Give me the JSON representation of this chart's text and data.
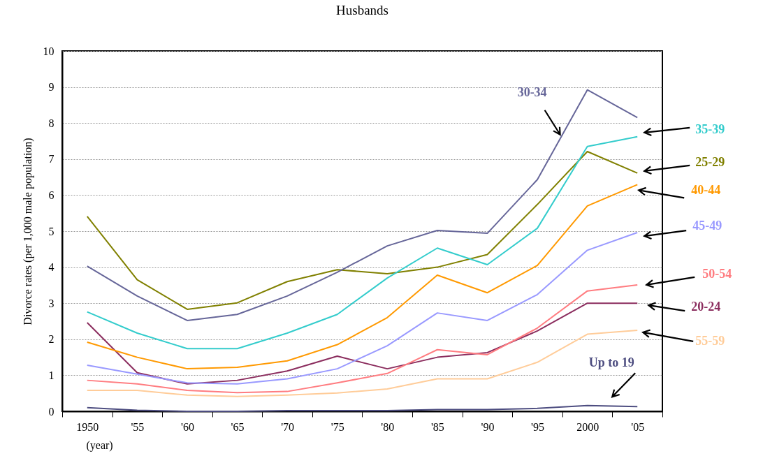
{
  "chart_data": {
    "type": "line",
    "title": "Husbands",
    "xlabel": "(year)",
    "ylabel": "Divorce rates (per 1,000 male population)",
    "categories": [
      "1950",
      "'55",
      "'60",
      "'65",
      "'70",
      "'75",
      "'80",
      "'85",
      "'90",
      "'95",
      "2000",
      "'05"
    ],
    "series": [
      {
        "name": "Up to 19",
        "color": "#4d4d80",
        "values": [
          0.1,
          0.03,
          0.0,
          0.0,
          0.02,
          0.02,
          0.02,
          0.05,
          0.05,
          0.08,
          0.16,
          0.13
        ]
      },
      {
        "name": "20-24",
        "color": "#8b2d5e",
        "values": [
          2.46,
          1.07,
          0.76,
          0.86,
          1.12,
          1.53,
          1.18,
          1.5,
          1.63,
          2.23,
          3.0,
          3.0
        ]
      },
      {
        "name": "25-29",
        "color": "#808000",
        "values": [
          5.41,
          3.65,
          2.83,
          3.01,
          3.6,
          3.93,
          3.82,
          4.0,
          4.35,
          5.74,
          7.21,
          6.61
        ]
      },
      {
        "name": "30-34",
        "color": "#666699",
        "values": [
          4.03,
          3.2,
          2.52,
          2.69,
          3.2,
          3.86,
          4.59,
          5.02,
          4.94,
          6.43,
          8.92,
          8.15
        ]
      },
      {
        "name": "35-39",
        "color": "#33cccc",
        "values": [
          2.76,
          2.17,
          1.74,
          1.74,
          2.17,
          2.69,
          3.7,
          4.53,
          4.07,
          5.08,
          7.35,
          7.62
        ]
      },
      {
        "name": "40-44",
        "color": "#ff9900",
        "values": [
          1.92,
          1.5,
          1.18,
          1.22,
          1.4,
          1.85,
          2.6,
          3.78,
          3.29,
          4.05,
          5.7,
          6.29
        ]
      },
      {
        "name": "45-49",
        "color": "#9999ff",
        "values": [
          1.28,
          1.03,
          0.79,
          0.76,
          0.9,
          1.18,
          1.82,
          2.73,
          2.52,
          3.24,
          4.47,
          4.96
        ]
      },
      {
        "name": "50-54",
        "color": "#ff7c80",
        "values": [
          0.86,
          0.76,
          0.58,
          0.52,
          0.55,
          0.79,
          1.05,
          1.71,
          1.57,
          2.31,
          3.34,
          3.51
        ]
      },
      {
        "name": "55-59",
        "color": "#ffcc99",
        "values": [
          0.58,
          0.58,
          0.45,
          0.41,
          0.45,
          0.51,
          0.62,
          0.9,
          0.9,
          1.36,
          2.14,
          2.25
        ]
      }
    ],
    "ylim": [
      0,
      10
    ],
    "yticks": [
      0,
      1,
      2,
      3,
      4,
      5,
      6,
      7,
      8,
      9,
      10
    ],
    "grid": "y",
    "legend": false,
    "marker": "none",
    "line_style": "solid"
  }
}
